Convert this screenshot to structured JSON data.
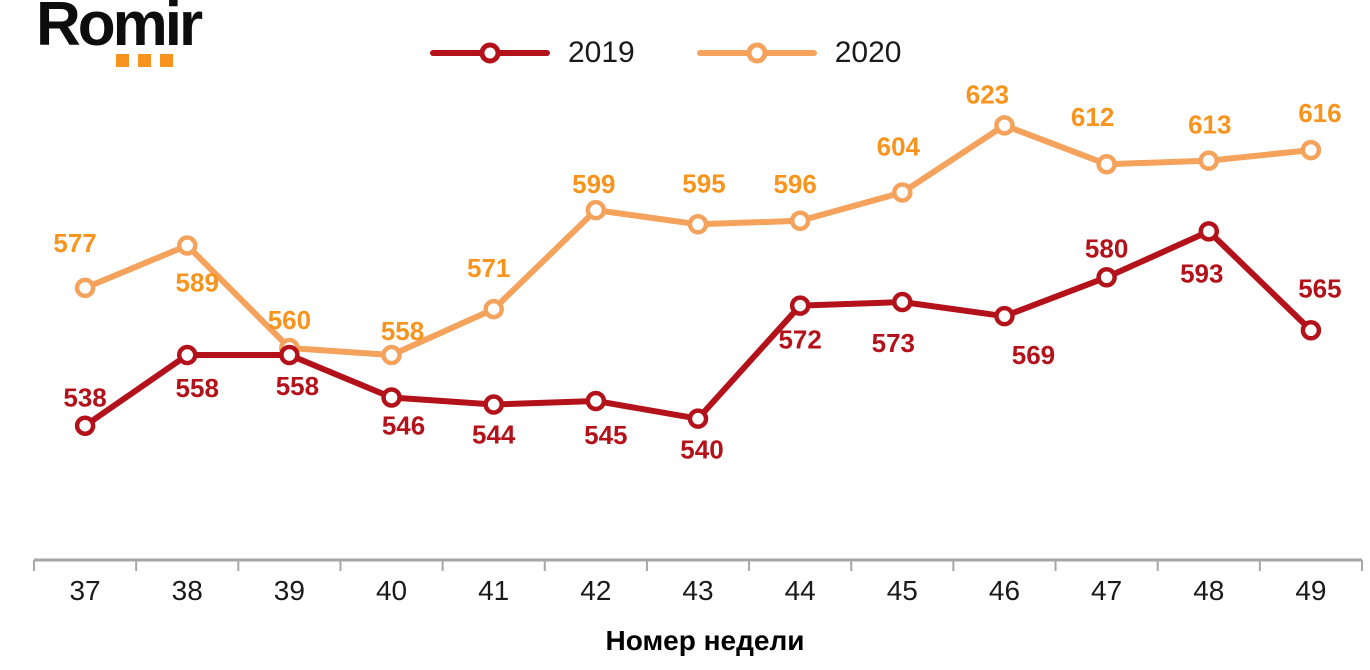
{
  "logo": {
    "text": "Romir",
    "dot_color": "#F7941E"
  },
  "legend": [
    {
      "label": "2019",
      "color": "#B4121A"
    },
    {
      "label": "2020",
      "color": "#F4A25C"
    }
  ],
  "chart_data": {
    "type": "line",
    "x": [
      37,
      38,
      39,
      40,
      41,
      42,
      43,
      44,
      45,
      46,
      47,
      48,
      49
    ],
    "xlabel": "Номер недели",
    "ylim": [
      500,
      648
    ],
    "grid": false,
    "legend_position": "top-center",
    "marker": "open-circle",
    "axis_color": "#A6A6A6",
    "tick_label_color": "#1A1A1A",
    "series": [
      {
        "name": "2019",
        "color": "#B4121A",
        "label_color": "#B4121A",
        "values": [
          538,
          558,
          558,
          546,
          544,
          545,
          540,
          572,
          573,
          569,
          580,
          593,
          565
        ],
        "label_offsets": [
          [
            0,
            -19
          ],
          [
            10,
            42
          ],
          [
            8,
            40
          ],
          [
            12,
            37
          ],
          [
            0,
            39
          ],
          [
            10,
            43
          ],
          [
            4,
            40
          ],
          [
            0,
            43
          ],
          [
            -9,
            50
          ],
          [
            29,
            48
          ],
          [
            0,
            -20
          ],
          [
            -7,
            51
          ],
          [
            9,
            -33
          ]
        ]
      },
      {
        "name": "2020",
        "color": "#F4A25C",
        "label_color": "#F7941E",
        "values": [
          577,
          589,
          560,
          558,
          571,
          599,
          595,
          596,
          604,
          623,
          612,
          613,
          616
        ],
        "label_offsets": [
          [
            -10,
            -36
          ],
          [
            10,
            46
          ],
          [
            0,
            -19
          ],
          [
            11,
            -15
          ],
          [
            -5,
            -32
          ],
          [
            -2,
            -17
          ],
          [
            6,
            -32
          ],
          [
            -5,
            -28
          ],
          [
            -4,
            -37
          ],
          [
            -17,
            -22
          ],
          [
            -14,
            -38
          ],
          [
            1,
            -27
          ],
          [
            9,
            -28
          ]
        ]
      }
    ]
  }
}
